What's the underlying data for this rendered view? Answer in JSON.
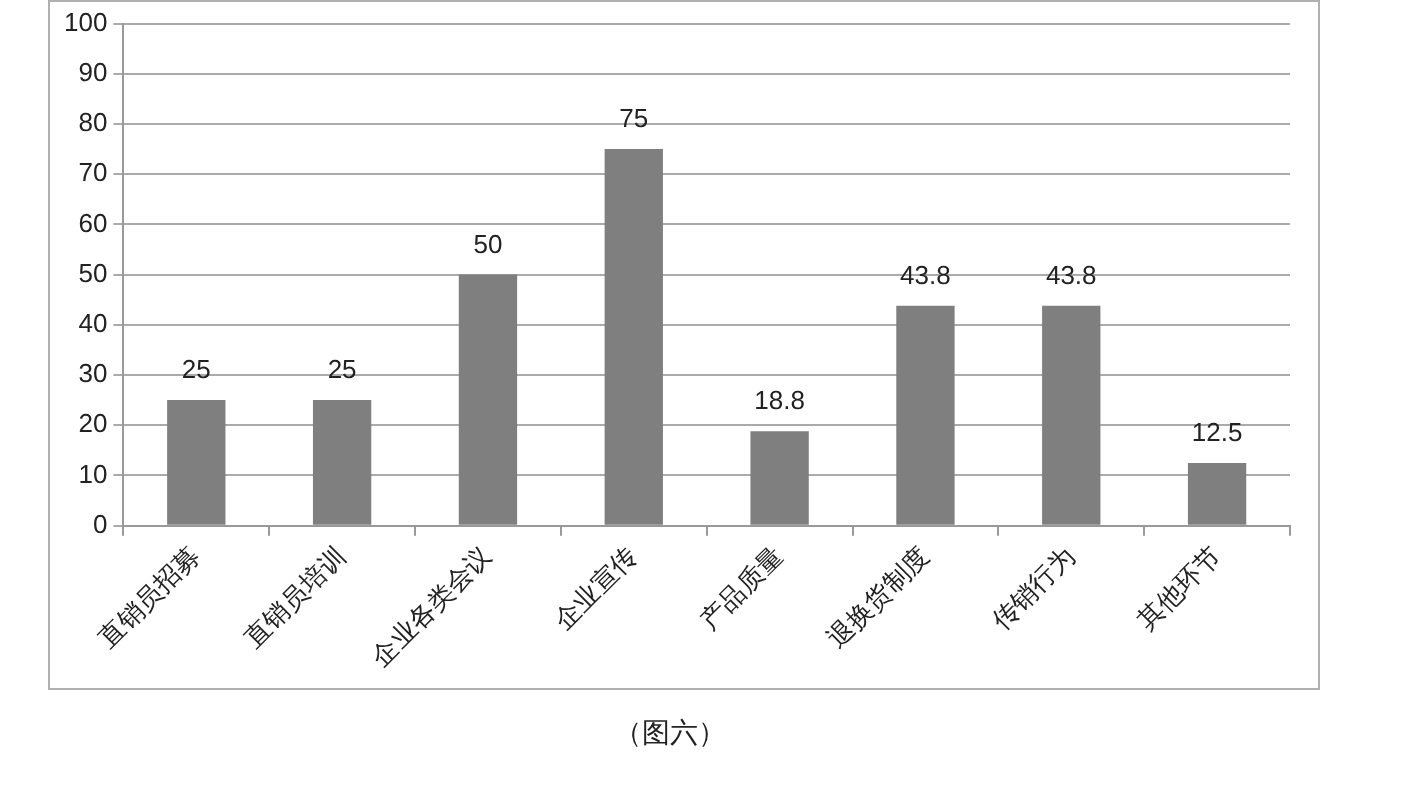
{
  "chart_data": {
    "type": "bar",
    "categories": [
      "直销员招募",
      "直销员培训",
      "企业各类会议",
      "企业宣传",
      "产品质量",
      "退换货制度",
      "传销行为",
      "其他环节"
    ],
    "values": [
      25,
      25,
      50,
      75,
      18.8,
      43.8,
      43.8,
      12.5
    ],
    "color": "#7f7f7f",
    "ylim": [
      0,
      100
    ],
    "yticks": [
      0,
      10,
      20,
      30,
      40,
      50,
      60,
      70,
      80,
      90,
      100
    ],
    "grid": "y",
    "legend": false,
    "data_labels": true,
    "annotations": [
      "（图六）"
    ]
  }
}
